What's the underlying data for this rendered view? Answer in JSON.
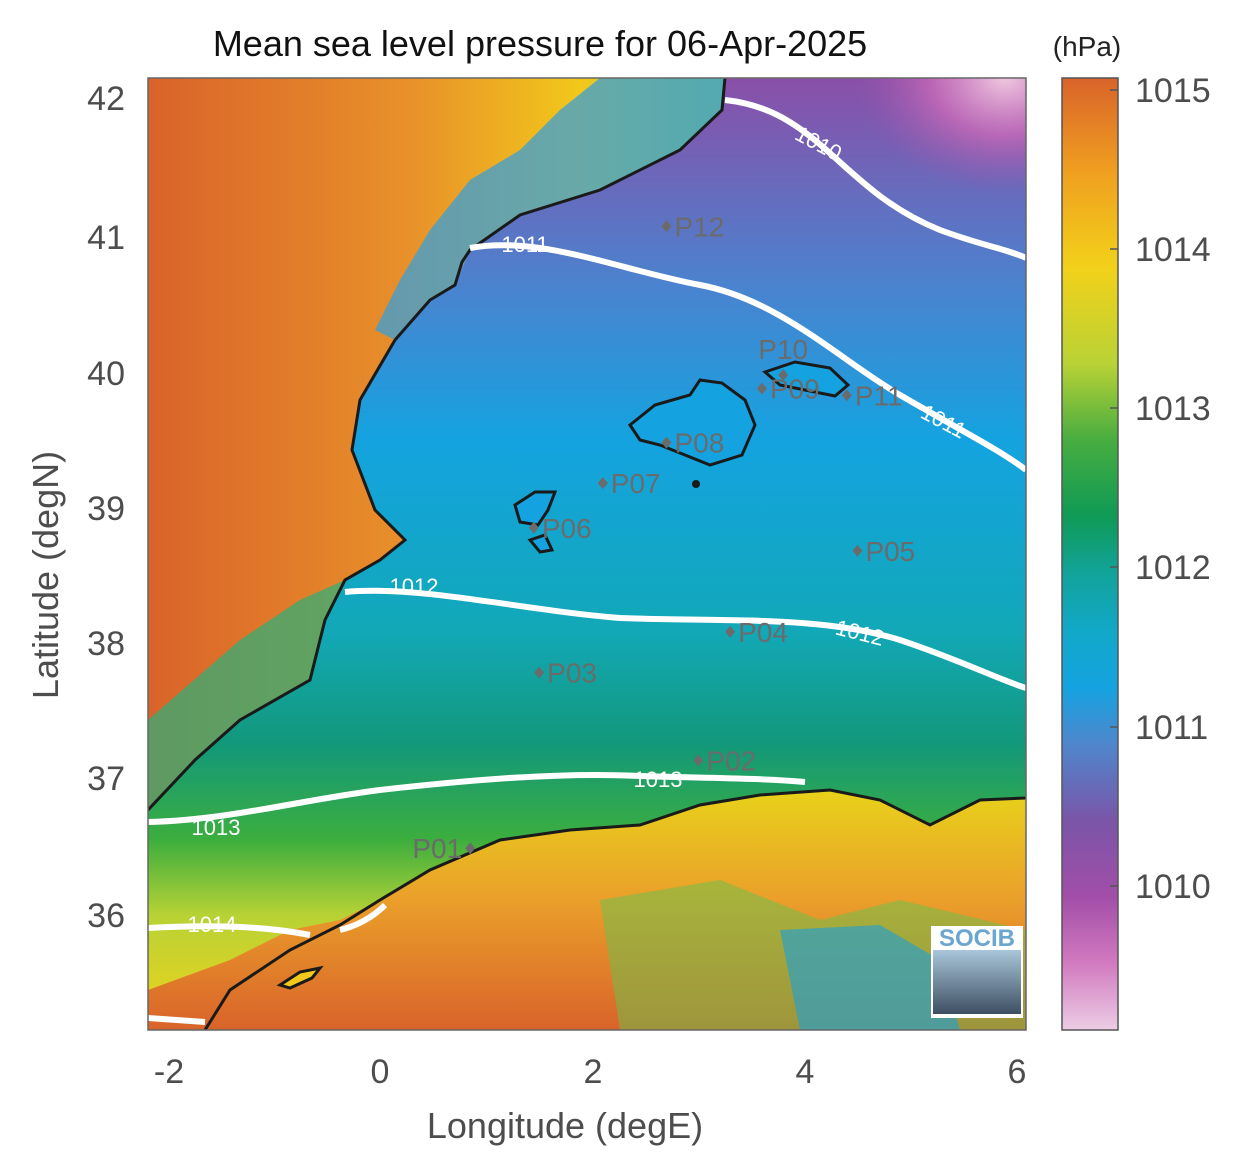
{
  "title": "Mean sea level pressure for 06-Apr-2025",
  "xlabel": "Longitude (degE)",
  "ylabel": "Latitude (degN)",
  "colorbar": {
    "unit": "(hPa)",
    "ticks": [
      "1015",
      "1014",
      "1013",
      "1012",
      "1011",
      "1010"
    ],
    "range": [
      1009.1,
      1015.1
    ]
  },
  "x_ticks": [
    "-2",
    "0",
    "2",
    "4",
    "6"
  ],
  "y_ticks": [
    "42",
    "41",
    "40",
    "39",
    "38",
    "37",
    "36"
  ],
  "contour_labels": [
    "1010",
    "1011",
    "1011",
    "1012",
    "1012",
    "1013",
    "1013",
    "1014"
  ],
  "stations": [
    {
      "name": "P01",
      "lon": 0.85,
      "lat": 36.5
    },
    {
      "name": "P02",
      "lon": 3.0,
      "lat": 37.15
    },
    {
      "name": "P03",
      "lon": 1.5,
      "lat": 37.8
    },
    {
      "name": "P04",
      "lon": 3.3,
      "lat": 38.1
    },
    {
      "name": "P05",
      "lon": 4.5,
      "lat": 38.7
    },
    {
      "name": "P06",
      "lon": 1.45,
      "lat": 38.87
    },
    {
      "name": "P07",
      "lon": 2.1,
      "lat": 39.2
    },
    {
      "name": "P08",
      "lon": 2.7,
      "lat": 39.5
    },
    {
      "name": "P09",
      "lon": 3.6,
      "lat": 39.9
    },
    {
      "name": "P10",
      "lon": 3.8,
      "lat": 40.0
    },
    {
      "name": "P11",
      "lon": 4.4,
      "lat": 39.85
    },
    {
      "name": "P12",
      "lon": 2.7,
      "lat": 41.1
    }
  ],
  "logo": {
    "text": "SOCIB"
  },
  "colors": {
    "land_high": "#d9632a",
    "land_mid": "#f2c81a",
    "sea_green": "#1a9a50",
    "sea_blue": "#14a3e0",
    "purple": "#7a55a8",
    "pink": "#e8b8d8",
    "coastline": "#1a1a1a",
    "contour": "#ffffff",
    "station": "#6b6b6b"
  }
}
